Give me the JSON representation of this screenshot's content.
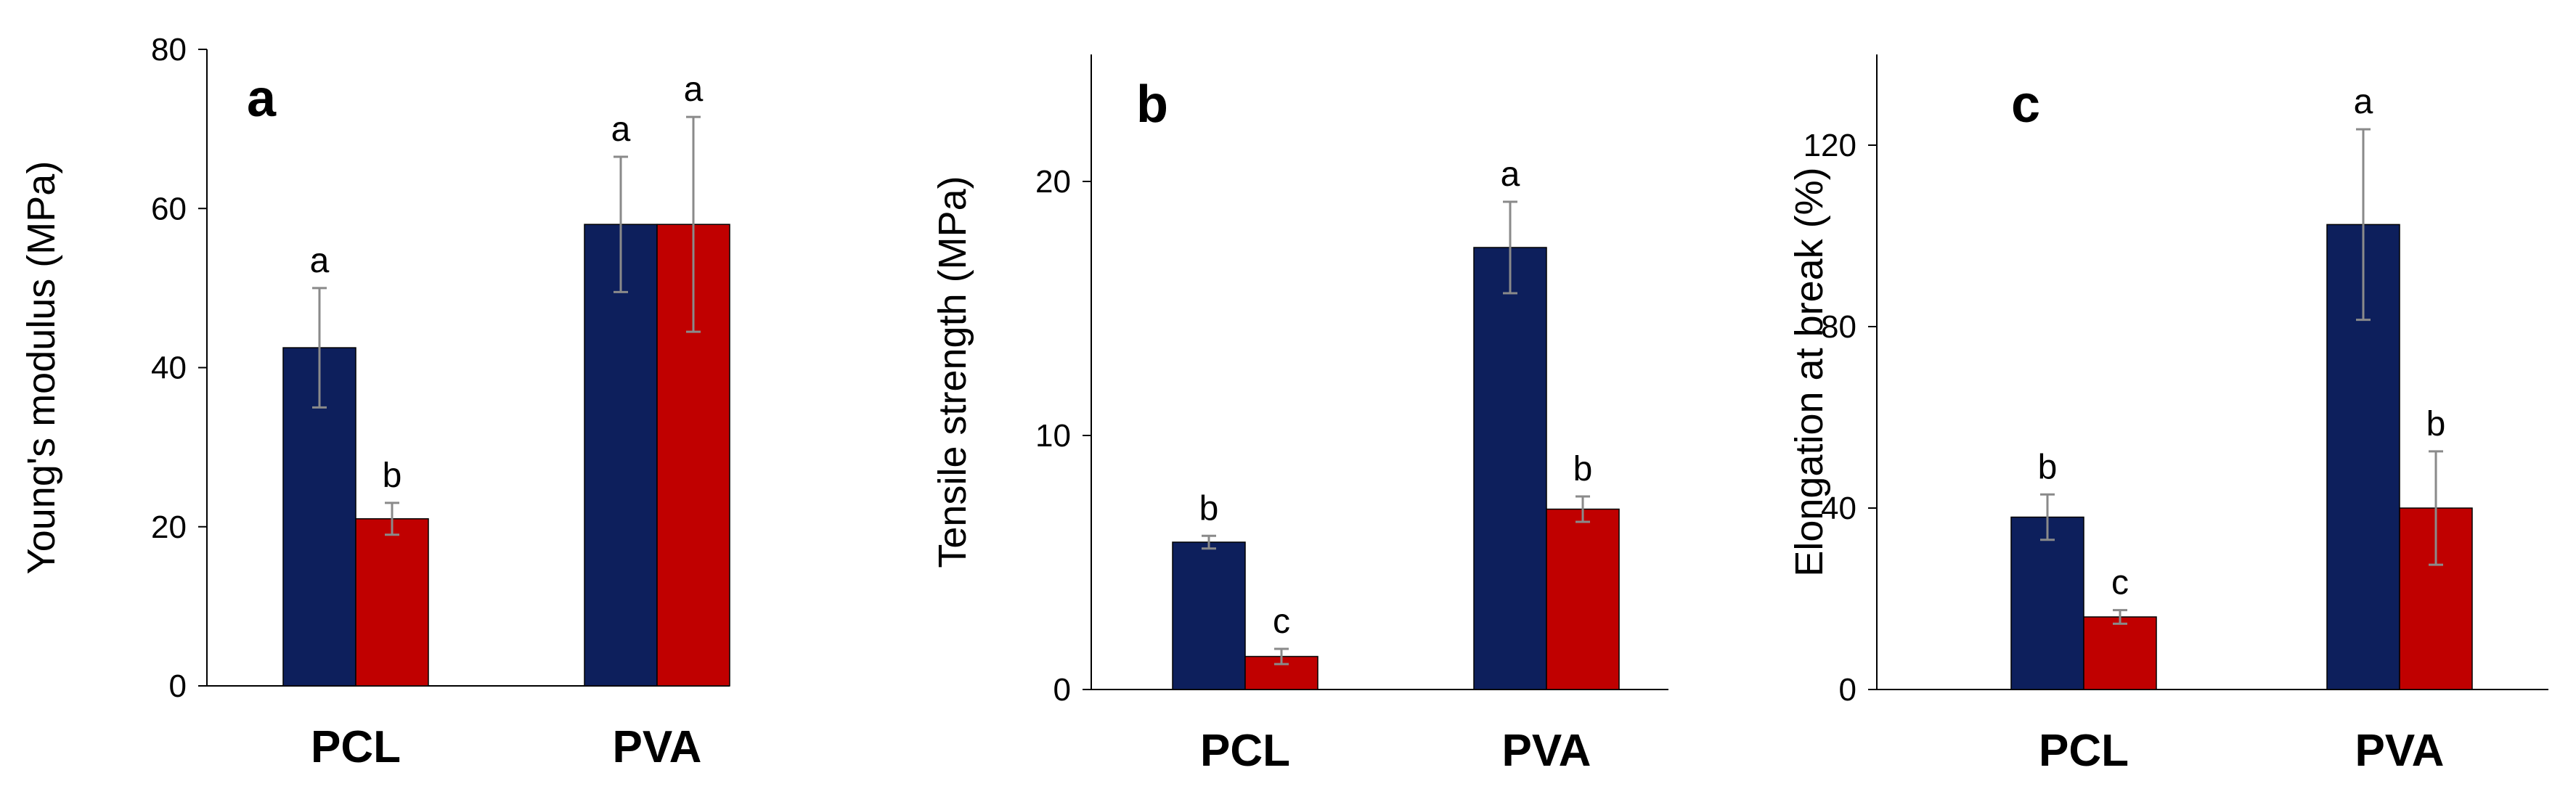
{
  "chart_data": [
    {
      "type": "bar",
      "panel_label": "a",
      "categories": [
        "PCL",
        "PVA"
      ],
      "ylabel": "Young's modulus (MPa)",
      "ylim": [
        0,
        80
      ],
      "yticks": [
        0,
        20,
        40,
        60,
        80
      ],
      "series": [
        {
          "name": "series-1",
          "color": "#0d1f5c",
          "values": [
            42.5,
            58
          ],
          "errors": [
            7.5,
            8.5
          ],
          "letters": [
            "a",
            "a"
          ]
        },
        {
          "name": "series-2",
          "color": "#c00000",
          "values": [
            21,
            58
          ],
          "errors": [
            2,
            13.5
          ],
          "letters": [
            "b",
            "a"
          ]
        }
      ]
    },
    {
      "type": "bar",
      "panel_label": "b",
      "categories": [
        "PCL",
        "PVA"
      ],
      "ylabel": "Tensile strength (MPa)",
      "ylim": [
        0,
        25
      ],
      "yticks": [
        0,
        10,
        20
      ],
      "series": [
        {
          "name": "series-1",
          "color": "#0d1f5c",
          "values": [
            5.8,
            17.4
          ],
          "errors": [
            0.25,
            1.8
          ],
          "letters": [
            "b",
            "a"
          ]
        },
        {
          "name": "series-2",
          "color": "#c00000",
          "values": [
            1.3,
            7.1
          ],
          "errors": [
            0.3,
            0.5
          ],
          "letters": [
            "c",
            "b"
          ]
        }
      ]
    },
    {
      "type": "bar",
      "panel_label": "c",
      "categories": [
        "PCL",
        "PVA"
      ],
      "ylabel": "Elongation at break (%)",
      "ylim": [
        0,
        140
      ],
      "yticks": [
        0,
        40,
        80,
        120
      ],
      "series": [
        {
          "name": "series-1",
          "color": "#0d1f5c",
          "values": [
            38,
            102.5
          ],
          "errors": [
            5,
            21
          ],
          "letters": [
            "b",
            "a"
          ]
        },
        {
          "name": "series-2",
          "color": "#c00000",
          "values": [
            16,
            40
          ],
          "errors": [
            1.5,
            12.5
          ],
          "letters": [
            "c",
            "b"
          ]
        }
      ]
    }
  ]
}
